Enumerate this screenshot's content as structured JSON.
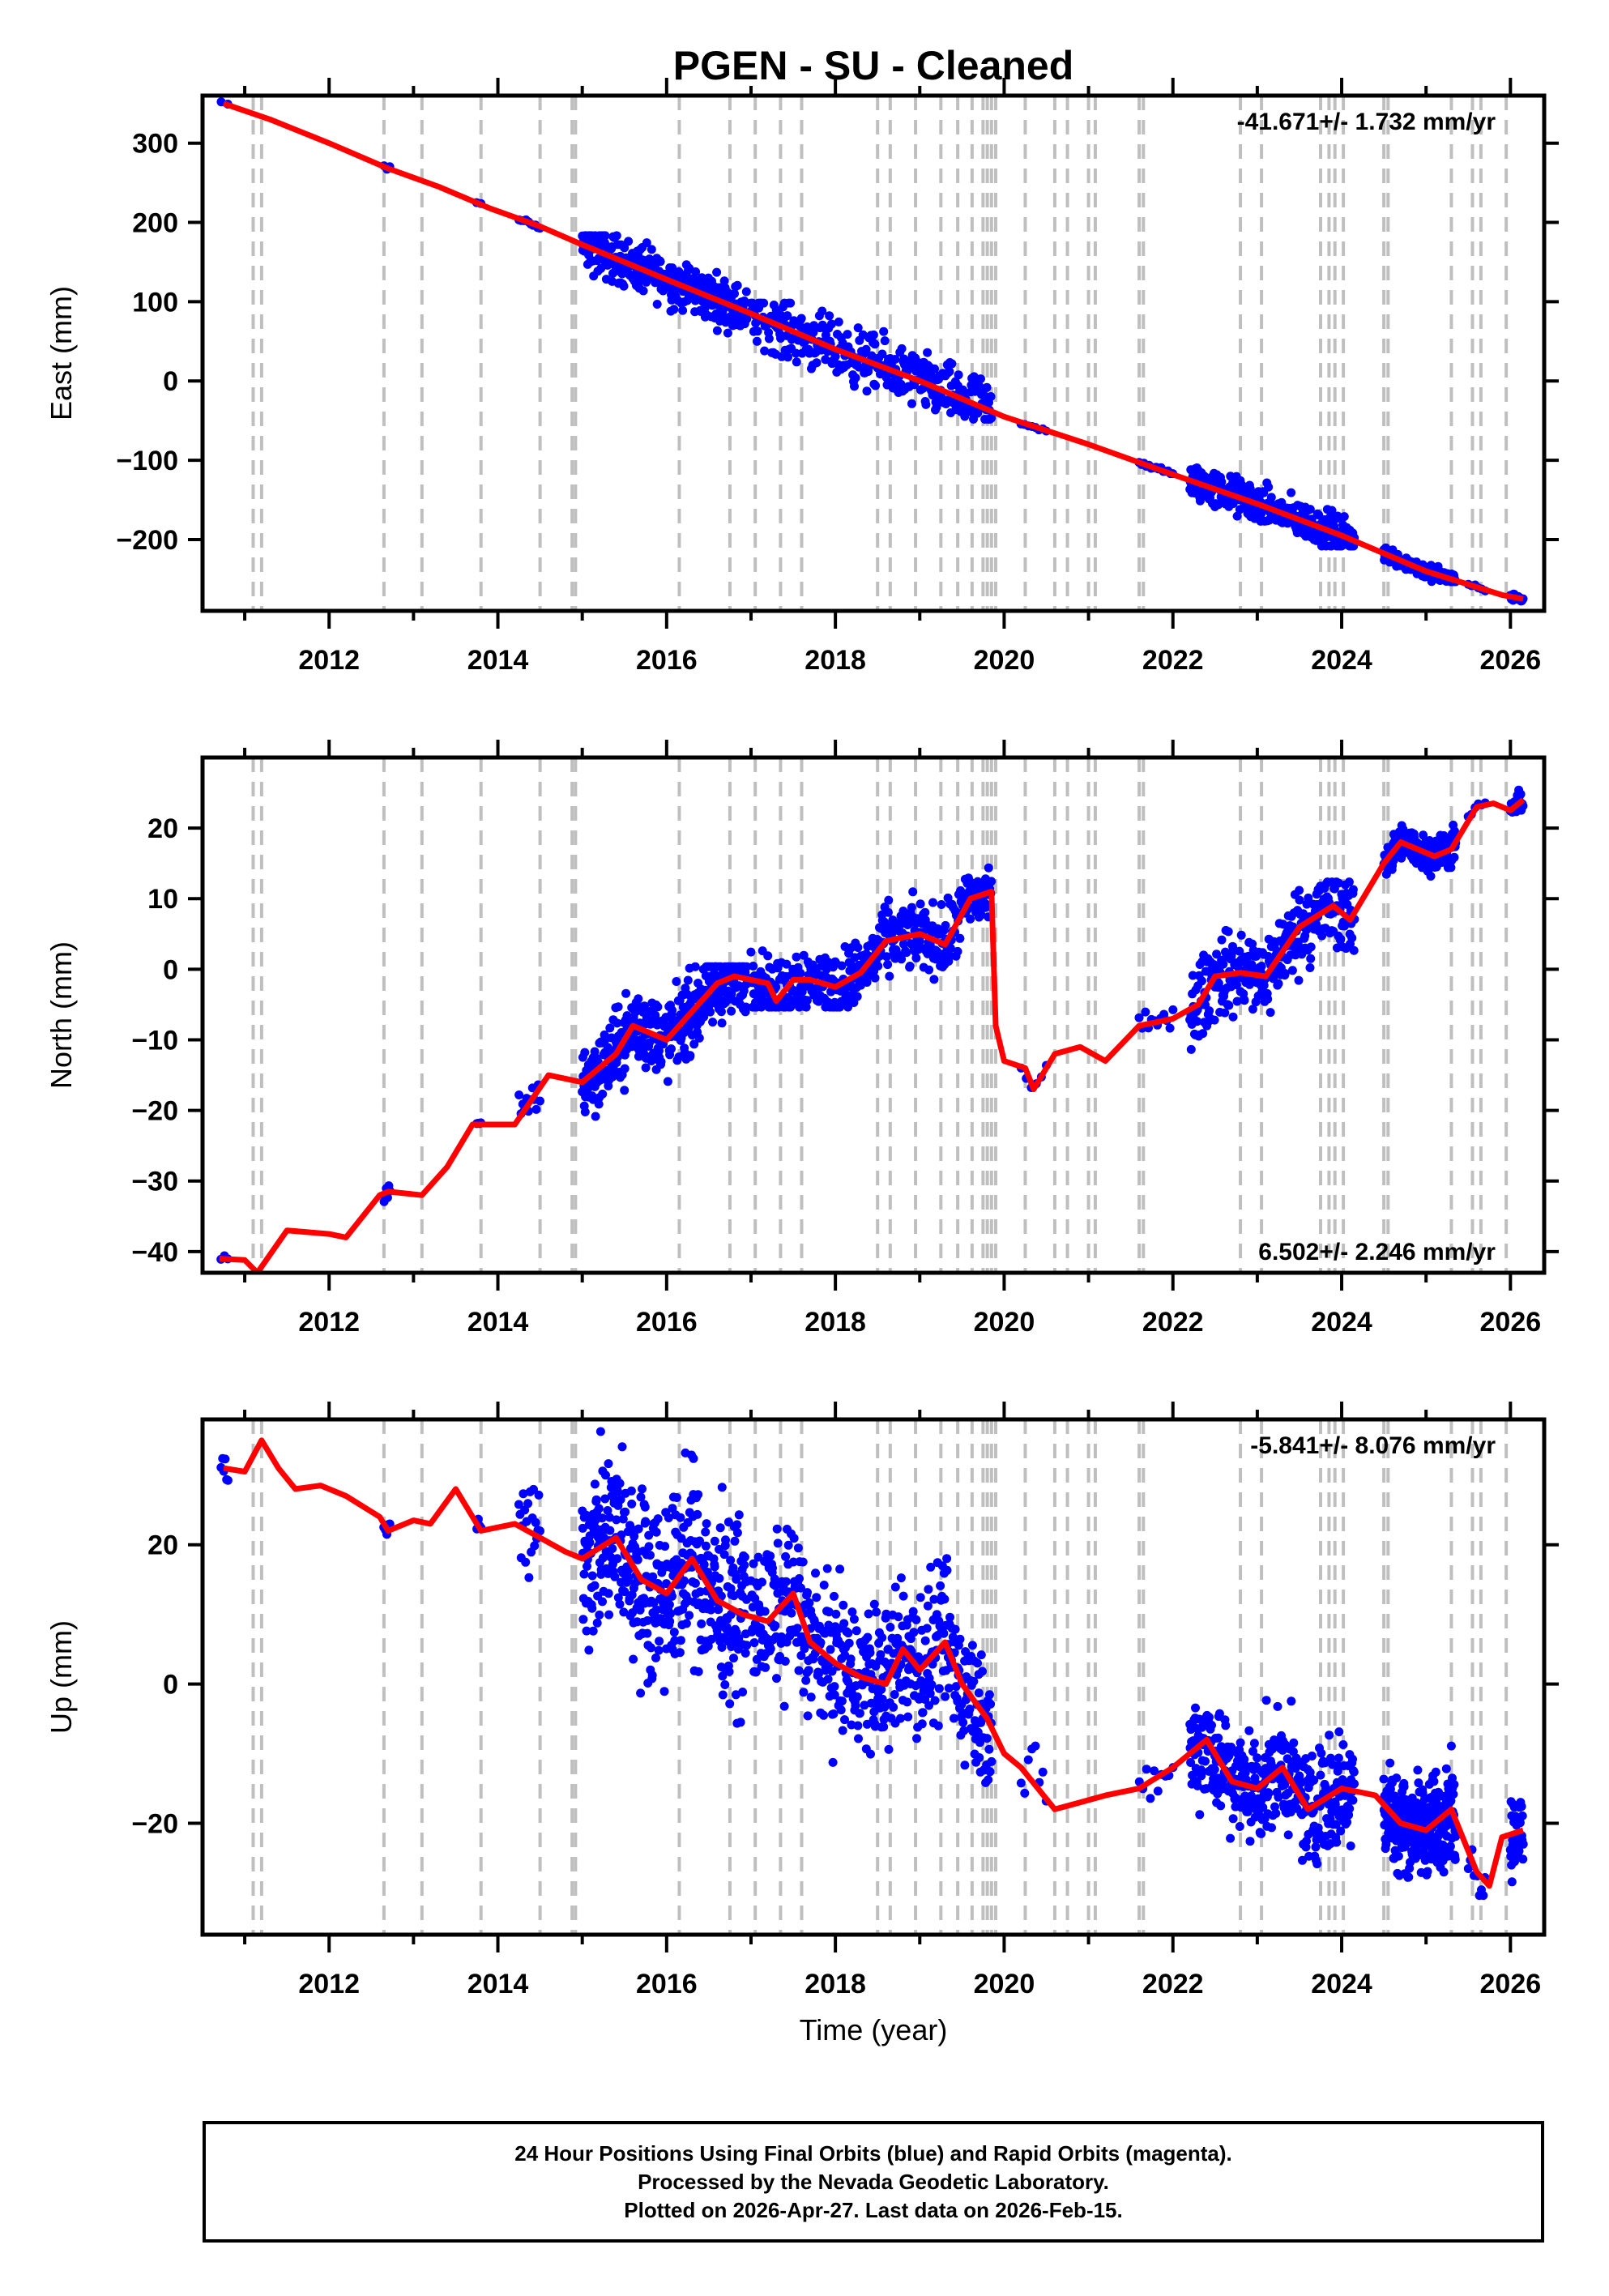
{
  "title": "PGEN  - SU - Cleaned",
  "colors": {
    "data": "#0000ff",
    "model": "#ff0000",
    "steps": "#bfbfbf",
    "axis": "#000000"
  },
  "chart_data": [
    {
      "type": "scatter",
      "name": "East",
      "ylabel": "East (mm)",
      "xlim": [
        2010.5,
        2026.4
      ],
      "ylim": [
        -290,
        360
      ],
      "yticks": [
        300,
        200,
        100,
        0,
        -100,
        -200
      ],
      "ytick_labels": [
        "300",
        "200",
        "100",
        "0",
        "−100",
        "−200"
      ],
      "xticks": [
        2012,
        2014,
        2016,
        2018,
        2020,
        2022,
        2024,
        2026
      ],
      "xtick_labels": [
        "2012",
        "2014",
        "2016",
        "2018",
        "2020",
        "2022",
        "2024",
        "2026"
      ],
      "rate": "-41.671+/- 1.732 mm/yr",
      "rate_position": "top-right",
      "model": [
        [
          2010.75,
          350
        ],
        [
          2011.3,
          330
        ],
        [
          2012,
          300
        ],
        [
          2012.7,
          268
        ],
        [
          2013.3,
          245
        ],
        [
          2013.9,
          218
        ],
        [
          2014.5,
          195
        ],
        [
          2015,
          172
        ],
        [
          2016,
          128
        ],
        [
          2017,
          85
        ],
        [
          2018,
          40
        ],
        [
          2019,
          0
        ],
        [
          2020,
          -45
        ],
        [
          2021,
          -80
        ],
        [
          2022,
          -118
        ],
        [
          2023,
          -155
        ],
        [
          2024,
          -195
        ],
        [
          2025,
          -240
        ],
        [
          2025.9,
          -270
        ],
        [
          2026.15,
          -275
        ]
      ],
      "segments": [
        [
          2010.72,
          2010.8,
          2,
          340,
          360
        ],
        [
          2012.65,
          2012.72,
          3,
          260,
          272
        ],
        [
          2013.75,
          2013.8,
          2,
          218,
          226
        ],
        [
          2014.25,
          2014.5,
          10,
          185,
          200
        ],
        [
          2015,
          2016.95,
          330,
          60,
          180
        ],
        [
          2017,
          2019.85,
          360,
          -45,
          95
        ],
        [
          2020.2,
          2020.5,
          8,
          -68,
          -55
        ],
        [
          2021.6,
          2022.0,
          15,
          -118,
          -105
        ],
        [
          2022.2,
          2024.15,
          300,
          -205,
          -110
        ],
        [
          2024.5,
          2025.35,
          150,
          -250,
          -210
        ],
        [
          2025.5,
          2025.7,
          6,
          -265,
          -255
        ],
        [
          2026,
          2026.15,
          20,
          -282,
          -265
        ]
      ]
    },
    {
      "type": "scatter",
      "name": "North",
      "ylabel": "North (mm)",
      "xlim": [
        2010.5,
        2026.4
      ],
      "ylim": [
        -43,
        30
      ],
      "yticks": [
        20,
        10,
        0,
        -10,
        -20,
        -30,
        -40
      ],
      "ytick_labels": [
        "20",
        "10",
        "0",
        "−10",
        "−20",
        "−30",
        "−40"
      ],
      "xticks": [
        2012,
        2014,
        2016,
        2018,
        2020,
        2022,
        2024,
        2026
      ],
      "xtick_labels": [
        "2012",
        "2014",
        "2016",
        "2018",
        "2020",
        "2022",
        "2024",
        "2026"
      ],
      "rate": "6.502+/- 2.246 mm/yr",
      "rate_position": "bottom-right",
      "model": [
        [
          2010.7,
          -41
        ],
        [
          2011.0,
          -41.2
        ],
        [
          2011.15,
          -43
        ],
        [
          2011.5,
          -37
        ],
        [
          2012,
          -37.5
        ],
        [
          2012.2,
          -38
        ],
        [
          2012.6,
          -32
        ],
        [
          2012.7,
          -31.5
        ],
        [
          2013.1,
          -32
        ],
        [
          2013.4,
          -28
        ],
        [
          2013.7,
          -22
        ],
        [
          2014.2,
          -22
        ],
        [
          2014.6,
          -15
        ],
        [
          2015,
          -16
        ],
        [
          2015.4,
          -12
        ],
        [
          2015.6,
          -8
        ],
        [
          2016,
          -10
        ],
        [
          2016.3,
          -6
        ],
        [
          2016.6,
          -2
        ],
        [
          2016.8,
          -1
        ],
        [
          2017.2,
          -2
        ],
        [
          2017.3,
          -4.5
        ],
        [
          2017.5,
          -1.5
        ],
        [
          2017.7,
          -1.5
        ],
        [
          2018,
          -2.5
        ],
        [
          2018.3,
          -0.5
        ],
        [
          2018.6,
          4
        ],
        [
          2019,
          5
        ],
        [
          2019.3,
          3.5
        ],
        [
          2019.6,
          10
        ],
        [
          2019.85,
          11
        ],
        [
          2019.9,
          -8
        ],
        [
          2020,
          -13
        ],
        [
          2020.25,
          -14
        ],
        [
          2020.35,
          -17
        ],
        [
          2020.6,
          -12
        ],
        [
          2020.9,
          -11
        ],
        [
          2021.2,
          -13
        ],
        [
          2021.6,
          -8
        ],
        [
          2022,
          -7
        ],
        [
          2022.3,
          -5
        ],
        [
          2022.5,
          -1
        ],
        [
          2022.8,
          -0.5
        ],
        [
          2023.1,
          -1
        ],
        [
          2023.5,
          6
        ],
        [
          2023.9,
          9
        ],
        [
          2024.1,
          7
        ],
        [
          2024.5,
          15
        ],
        [
          2024.7,
          18
        ],
        [
          2025.1,
          16
        ],
        [
          2025.3,
          17
        ],
        [
          2025.6,
          23
        ],
        [
          2025.8,
          23.5
        ],
        [
          2026,
          22.5
        ],
        [
          2026.15,
          24
        ]
      ],
      "segments": [
        [
          2010.72,
          2010.8,
          3,
          -41,
          -39
        ],
        [
          2012.65,
          2012.72,
          6,
          -34,
          -28
        ],
        [
          2013.75,
          2013.8,
          4,
          -23,
          -21
        ],
        [
          2014.25,
          2014.5,
          12,
          -26,
          -14
        ],
        [
          2015,
          2016.95,
          400,
          -22,
          0
        ],
        [
          2017,
          2019.85,
          420,
          -5,
          14
        ],
        [
          2020.2,
          2020.5,
          6,
          -19,
          -13
        ],
        [
          2021.6,
          2022.0,
          12,
          -10,
          -4
        ],
        [
          2022.2,
          2024.15,
          320,
          -11,
          12
        ],
        [
          2024.5,
          2025.35,
          180,
          12,
          22
        ],
        [
          2025.5,
          2025.7,
          6,
          22,
          24
        ],
        [
          2026,
          2026.15,
          30,
          22,
          28
        ]
      ]
    },
    {
      "type": "scatter",
      "name": "Up",
      "ylabel": "Up (mm)",
      "xlim": [
        2010.5,
        2026.4
      ],
      "ylim": [
        -36,
        38
      ],
      "yticks": [
        20,
        0,
        -20
      ],
      "ytick_labels": [
        "20",
        "0",
        "−20"
      ],
      "xticks": [
        2012,
        2014,
        2016,
        2018,
        2020,
        2022,
        2024,
        2026
      ],
      "xtick_labels": [
        "2012",
        "2014",
        "2016",
        "2018",
        "2020",
        "2022",
        "2024",
        "2026"
      ],
      "xlabel": "Time (year)",
      "rate": "-5.841+/- 8.076 mm/yr",
      "rate_position": "top-right",
      "model": [
        [
          2010.75,
          31
        ],
        [
          2011,
          30.5
        ],
        [
          2011.2,
          35
        ],
        [
          2011.4,
          31
        ],
        [
          2011.6,
          28
        ],
        [
          2011.9,
          28.5
        ],
        [
          2012.2,
          27
        ],
        [
          2012.6,
          24
        ],
        [
          2012.7,
          22
        ],
        [
          2013.0,
          23.5
        ],
        [
          2013.2,
          23
        ],
        [
          2013.5,
          28
        ],
        [
          2013.8,
          22
        ],
        [
          2014.2,
          23
        ],
        [
          2014.5,
          21
        ],
        [
          2014.8,
          19
        ],
        [
          2015,
          18
        ],
        [
          2015.4,
          21
        ],
        [
          2015.7,
          15
        ],
        [
          2016,
          13
        ],
        [
          2016.3,
          18
        ],
        [
          2016.6,
          12
        ],
        [
          2016.9,
          10
        ],
        [
          2017.2,
          9
        ],
        [
          2017.5,
          13
        ],
        [
          2017.7,
          6
        ],
        [
          2018,
          3
        ],
        [
          2018.3,
          1
        ],
        [
          2018.6,
          0
        ],
        [
          2018.8,
          5
        ],
        [
          2019,
          2
        ],
        [
          2019.3,
          6
        ],
        [
          2019.5,
          0
        ],
        [
          2019.8,
          -5
        ],
        [
          2020,
          -10
        ],
        [
          2020.2,
          -12
        ],
        [
          2020.6,
          -18
        ],
        [
          2020.9,
          -17
        ],
        [
          2021.2,
          -16
        ],
        [
          2021.6,
          -15
        ],
        [
          2022,
          -12
        ],
        [
          2022.4,
          -8
        ],
        [
          2022.7,
          -14
        ],
        [
          2023,
          -15
        ],
        [
          2023.3,
          -12
        ],
        [
          2023.6,
          -18
        ],
        [
          2024,
          -15
        ],
        [
          2024.4,
          -16
        ],
        [
          2024.7,
          -20
        ],
        [
          2025,
          -21
        ],
        [
          2025.3,
          -18
        ],
        [
          2025.6,
          -27
        ],
        [
          2025.75,
          -29
        ],
        [
          2025.9,
          -22
        ],
        [
          2026.15,
          -21
        ]
      ],
      "segments": [
        [
          2010.72,
          2010.8,
          6,
          25,
          37
        ],
        [
          2012.65,
          2012.72,
          5,
          16,
          24
        ],
        [
          2013.75,
          2013.8,
          4,
          18,
          24
        ],
        [
          2014.25,
          2014.5,
          20,
          5,
          35
        ],
        [
          2015,
          2016.95,
          450,
          -13,
          38
        ],
        [
          2017,
          2019.85,
          500,
          -20,
          22
        ],
        [
          2020.2,
          2020.5,
          8,
          -25,
          -4
        ],
        [
          2021.6,
          2022.0,
          10,
          -22,
          -10
        ],
        [
          2022.2,
          2024.15,
          400,
          -28,
          4
        ],
        [
          2024.5,
          2025.35,
          300,
          -32,
          -5
        ],
        [
          2025.5,
          2025.7,
          10,
          -30,
          -15
        ],
        [
          2026,
          2026.15,
          40,
          -35,
          -12
        ]
      ]
    }
  ],
  "steps": [
    2011.1,
    2011.2,
    2012.65,
    2013.1,
    2013.8,
    2014.5,
    2014.88,
    2014.92,
    2016.15,
    2016.75,
    2017.05,
    2017.35,
    2017.6,
    2018.5,
    2018.65,
    2018.95,
    2019.25,
    2019.45,
    2019.62,
    2019.75,
    2019.8,
    2019.85,
    2019.9,
    2020.25,
    2020.6,
    2020.75,
    2021.0,
    2021.08,
    2021.6,
    2021.65,
    2022.8,
    2023.05,
    2023.75,
    2023.85,
    2023.92,
    2024.02,
    2024.5,
    2024.55,
    2025.3,
    2025.55,
    2025.65,
    2025.95
  ],
  "footer": {
    "line1": "24 Hour Positions Using Final Orbits (blue) and Rapid Orbits (magenta).",
    "line2": "Processed by the Nevada Geodetic Laboratory.",
    "line3": "Plotted on 2026-Apr-27. Last data on 2026-Feb-15."
  }
}
